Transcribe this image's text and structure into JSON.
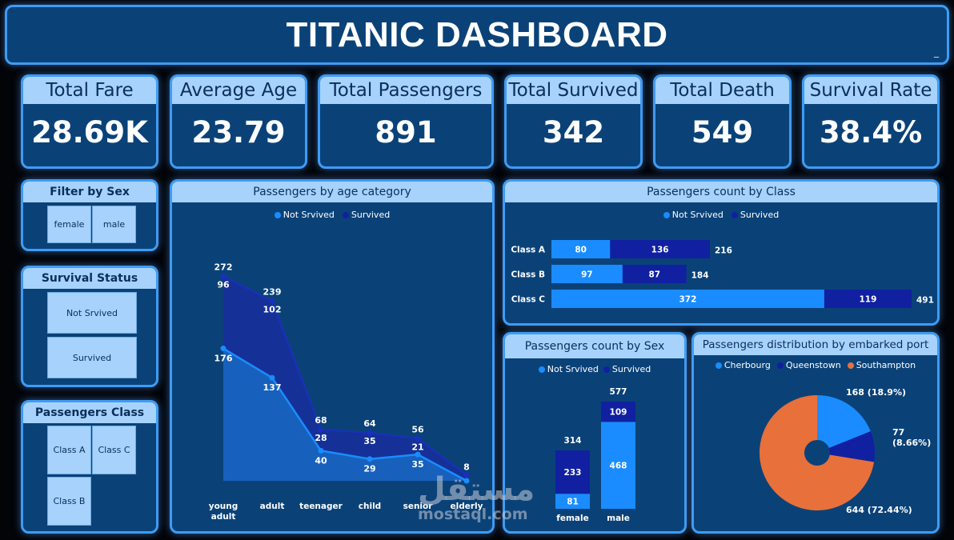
{
  "header": {
    "title": "TITANIC DASHBOARD",
    "minimize": "_"
  },
  "kpis": [
    {
      "label": "Total Fare",
      "value": "28.69K"
    },
    {
      "label": "Average Age",
      "value": "23.79"
    },
    {
      "label": "Total Passengers",
      "value": "891"
    },
    {
      "label": "Total Survived",
      "value": "342"
    },
    {
      "label": "Total Death",
      "value": "549"
    },
    {
      "label": "Survival Rate",
      "value": "38.4%"
    }
  ],
  "filters": {
    "sex": {
      "title": "Filter by Sex",
      "options": [
        "female",
        "male"
      ]
    },
    "status": {
      "title": "Survival Status",
      "options": [
        "Not Srvived",
        "Survived"
      ]
    },
    "class": {
      "title": "Passengers Class",
      "options": [
        "Class A",
        "Class C",
        "Class B"
      ]
    }
  },
  "colors": {
    "not_survived": "#1a8cff",
    "survived": "#1020a0",
    "southampton": "#e8703a",
    "cherbourg": "#1a8cff",
    "queenstown": "#1020a0"
  },
  "watermark": {
    "arabic": "مستقل",
    "latin": "mostaql.com"
  },
  "chart_data": [
    {
      "type": "area",
      "title": "Passengers by age category",
      "legend": [
        "Not Srvived",
        "Survived"
      ],
      "categories": [
        "young adult",
        "adult",
        "teenager",
        "child",
        "senior",
        "elderly"
      ],
      "series": [
        {
          "name": "Not Srvived",
          "values": [
            176,
            137,
            40,
            29,
            35,
            0
          ]
        },
        {
          "name": "Survived",
          "values": [
            96,
            102,
            28,
            35,
            21,
            8
          ]
        }
      ],
      "totals": [
        272,
        239,
        68,
        64,
        56,
        8
      ],
      "labels": {
        "not_survived": [
          "176",
          "137",
          "40",
          "29",
          "35",
          ""
        ],
        "survived": [
          "96",
          "102",
          "28",
          "35",
          "21",
          "8"
        ],
        "totals": [
          "272",
          "239",
          "68",
          "64",
          "56",
          ""
        ]
      },
      "stacked": true,
      "ylim": [
        0,
        300
      ]
    },
    {
      "type": "bar",
      "orientation": "horizontal",
      "title": "Passengers count by Class",
      "legend": [
        "Not Srvived",
        "Survived"
      ],
      "categories": [
        "Class A",
        "Class B",
        "Class C"
      ],
      "series": [
        {
          "name": "Not Srvived",
          "values": [
            80,
            97,
            372
          ]
        },
        {
          "name": "Survived",
          "values": [
            136,
            87,
            119
          ]
        }
      ],
      "totals": [
        216,
        184,
        491
      ],
      "stacked": true
    },
    {
      "type": "bar",
      "orientation": "vertical",
      "title": "Passengers count by Sex",
      "legend": [
        "Not Srvived",
        "Survived"
      ],
      "categories": [
        "female",
        "male"
      ],
      "series": [
        {
          "name": "Not Srvived",
          "values": [
            81,
            468
          ]
        },
        {
          "name": "Survived",
          "values": [
            233,
            109
          ]
        }
      ],
      "totals": [
        314,
        577
      ],
      "stacked": true
    },
    {
      "type": "pie",
      "title": "Passengers distribution by embarked port",
      "legend": [
        "Cherbourg",
        "Queenstown",
        "Southampton"
      ],
      "slices": [
        {
          "name": "Cherbourg",
          "value": 168,
          "label": "168 (18.9%)"
        },
        {
          "name": "Queenstown",
          "value": 77,
          "label": "77 (8.66%)"
        },
        {
          "name": "Southampton",
          "value": 644,
          "label": "644 (72.44%)"
        }
      ],
      "donut": true
    }
  ]
}
